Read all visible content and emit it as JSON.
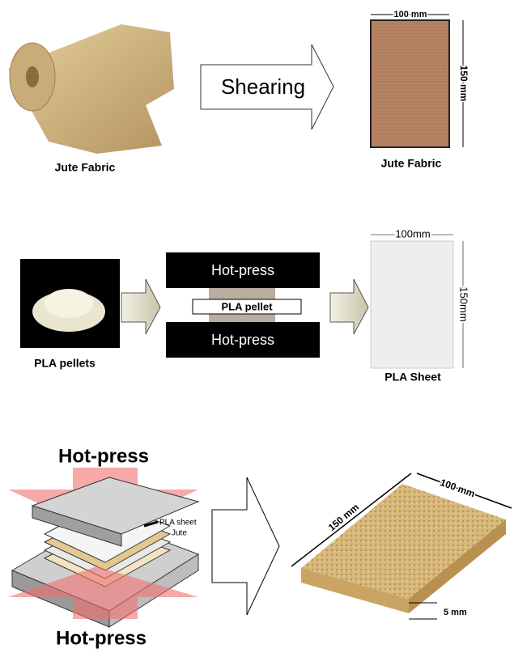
{
  "row1": {
    "source_label": "Jute Fabric",
    "process": "Shearing",
    "product": {
      "label": "Jute Fabric",
      "width": "100 mm",
      "height": "150 mm"
    }
  },
  "row2": {
    "source_label": "PLA pellets",
    "press_top": "Hot-press",
    "press_content": "PLA pellet",
    "press_bottom": "Hot-press",
    "product": {
      "label": "PLA Sheet",
      "width": "100mm",
      "height": "150mm"
    }
  },
  "row3": {
    "press_top": "Hot-press",
    "press_bottom": "Hot-press",
    "layers": [
      "PLA sheet",
      "Jute"
    ],
    "product": {
      "width": "100 mm",
      "length": "150 mm",
      "thickness": "5 mm"
    }
  }
}
